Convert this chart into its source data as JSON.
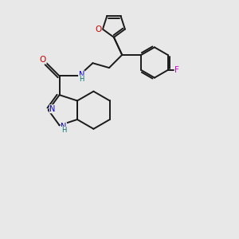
{
  "background_color": "#e8e8e8",
  "bond_color": "#1a1a1a",
  "atom_colors": {
    "O": "#cc0000",
    "N": "#0000cc",
    "F": "#cc00cc",
    "H": "#007070",
    "C": "#1a1a1a"
  },
  "figsize": [
    3.0,
    3.0
  ],
  "dpi": 100
}
